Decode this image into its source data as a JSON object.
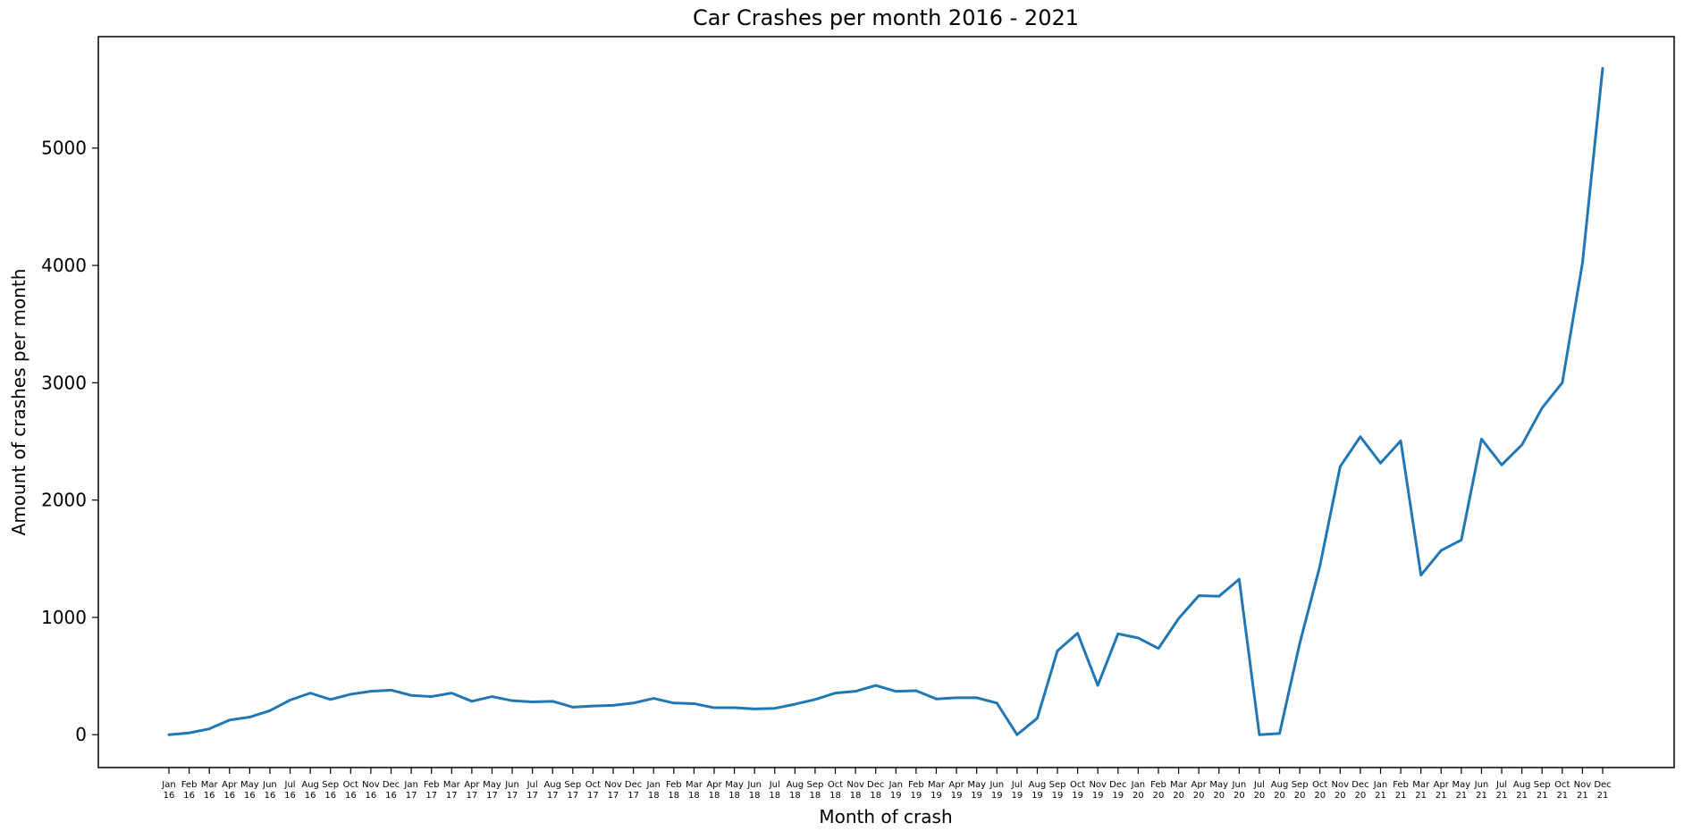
{
  "chart_data": {
    "type": "line",
    "title": "Car Crashes per month 2016 - 2021",
    "xlabel": "Month of crash",
    "ylabel": "Amount of crashes per month",
    "ylim": [
      -280,
      5950
    ],
    "yticks": [
      0,
      1000,
      2000,
      3000,
      4000,
      5000
    ],
    "grid": false,
    "line_color": "#1f77b4",
    "categories": [
      [
        "Jan",
        "16"
      ],
      [
        "Feb",
        "16"
      ],
      [
        "Mar",
        "16"
      ],
      [
        "Apr",
        "16"
      ],
      [
        "May",
        "16"
      ],
      [
        "Jun",
        "16"
      ],
      [
        "Jul",
        "16"
      ],
      [
        "Aug",
        "16"
      ],
      [
        "Sep",
        "16"
      ],
      [
        "Oct",
        "16"
      ],
      [
        "Nov",
        "16"
      ],
      [
        "Dec",
        "16"
      ],
      [
        "Jan",
        "17"
      ],
      [
        "Feb",
        "17"
      ],
      [
        "Mar",
        "17"
      ],
      [
        "Apr",
        "17"
      ],
      [
        "May",
        "17"
      ],
      [
        "Jun",
        "17"
      ],
      [
        "Jul",
        "17"
      ],
      [
        "Aug",
        "17"
      ],
      [
        "Sep",
        "17"
      ],
      [
        "Oct",
        "17"
      ],
      [
        "Nov",
        "17"
      ],
      [
        "Dec",
        "17"
      ],
      [
        "Jan",
        "18"
      ],
      [
        "Feb",
        "18"
      ],
      [
        "Mar",
        "18"
      ],
      [
        "Apr",
        "18"
      ],
      [
        "May",
        "18"
      ],
      [
        "Jun",
        "18"
      ],
      [
        "Jul",
        "18"
      ],
      [
        "Aug",
        "18"
      ],
      [
        "Sep",
        "18"
      ],
      [
        "Oct",
        "18"
      ],
      [
        "Nov",
        "18"
      ],
      [
        "Dec",
        "18"
      ],
      [
        "Jan",
        "19"
      ],
      [
        "Feb",
        "19"
      ],
      [
        "Mar",
        "19"
      ],
      [
        "Apr",
        "19"
      ],
      [
        "May",
        "19"
      ],
      [
        "Jun",
        "19"
      ],
      [
        "Jul",
        "19"
      ],
      [
        "Aug",
        "19"
      ],
      [
        "Sep",
        "19"
      ],
      [
        "Oct",
        "19"
      ],
      [
        "Nov",
        "19"
      ],
      [
        "Dec",
        "19"
      ],
      [
        "Jan",
        "20"
      ],
      [
        "Feb",
        "20"
      ],
      [
        "Mar",
        "20"
      ],
      [
        "Apr",
        "20"
      ],
      [
        "May",
        "20"
      ],
      [
        "Jun",
        "20"
      ],
      [
        "Jul",
        "20"
      ],
      [
        "Aug",
        "20"
      ],
      [
        "Sep",
        "20"
      ],
      [
        "Oct",
        "20"
      ],
      [
        "Nov",
        "20"
      ],
      [
        "Dec",
        "20"
      ],
      [
        "Jan",
        "21"
      ],
      [
        "Feb",
        "21"
      ],
      [
        "Mar",
        "21"
      ],
      [
        "Apr",
        "21"
      ],
      [
        "May",
        "21"
      ],
      [
        "Jun",
        "21"
      ],
      [
        "Jul",
        "21"
      ],
      [
        "Aug",
        "21"
      ],
      [
        "Sep",
        "21"
      ],
      [
        "Oct",
        "21"
      ],
      [
        "Nov",
        "21"
      ],
      [
        "Dec",
        "21"
      ]
    ],
    "series": [
      {
        "values": [
          0,
          15,
          50,
          125,
          150,
          205,
          295,
          355,
          300,
          345,
          370,
          380,
          335,
          325,
          355,
          285,
          325,
          290,
          280,
          285,
          235,
          245,
          250,
          270,
          310,
          270,
          265,
          230,
          230,
          220,
          225,
          260,
          300,
          355,
          370,
          420,
          370,
          375,
          305,
          315,
          315,
          270,
          0,
          140,
          715,
          865,
          420,
          860,
          825,
          735,
          990,
          1185,
          1180,
          1325,
          0,
          10,
          780,
          1440,
          2285,
          2540,
          2315,
          2505,
          1360,
          1570,
          1660,
          2520,
          2300,
          2470,
          2785,
          3000,
          4020,
          5680
        ]
      }
    ]
  }
}
